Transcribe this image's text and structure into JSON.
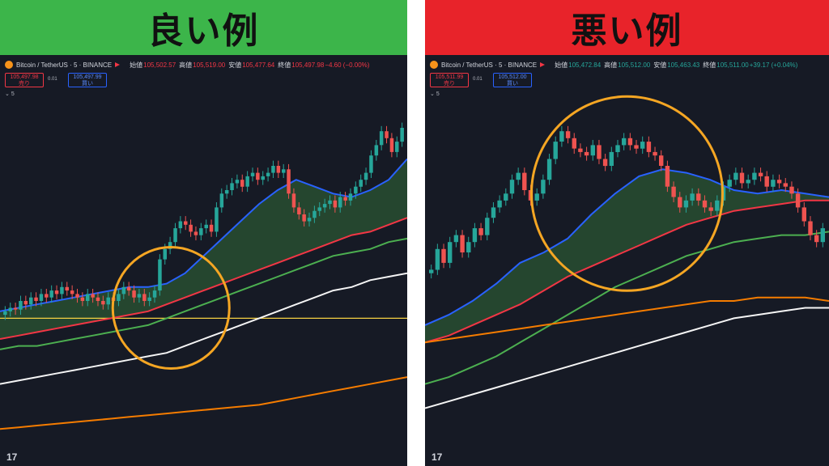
{
  "panels": [
    {
      "id": "left",
      "banner": {
        "label": "良い例",
        "color": "#3cb54a"
      },
      "legend": {
        "symbol": "Bitcoin / TetherUS · 5 · BINANCE",
        "open_label": "始値",
        "open": "105,502.57",
        "high_label": "高値",
        "high": "105,519.00",
        "low_label": "安値",
        "low": "105,477.64",
        "close_label": "終値",
        "close": "105,497.98",
        "change": "−4.60 (−0.00%)",
        "change_dir": "down"
      },
      "sell": {
        "price": "105,497.98",
        "label": "売り"
      },
      "spread": "0.01",
      "buy": {
        "price": "105,497.99",
        "label": "買い"
      },
      "interval": "5",
      "logo": "17",
      "chart_data": {
        "type": "line",
        "ylim": [
          0,
          1
        ],
        "candles": [
          0.4,
          0.41,
          0.405,
          0.43,
          0.42,
          0.44,
          0.43,
          0.45,
          0.44,
          0.46,
          0.45,
          0.47,
          0.46,
          0.45,
          0.44,
          0.43,
          0.45,
          0.44,
          0.43,
          0.42,
          0.44,
          0.43,
          0.45,
          0.47,
          0.46,
          0.44,
          0.45,
          0.43,
          0.44,
          0.46,
          0.55,
          0.58,
          0.6,
          0.64,
          0.66,
          0.65,
          0.63,
          0.62,
          0.64,
          0.65,
          0.63,
          0.7,
          0.74,
          0.75,
          0.77,
          0.78,
          0.76,
          0.79,
          0.8,
          0.78,
          0.79,
          0.8,
          0.82,
          0.8,
          0.81,
          0.74,
          0.7,
          0.68,
          0.66,
          0.67,
          0.69,
          0.7,
          0.71,
          0.72,
          0.7,
          0.73,
          0.72,
          0.74,
          0.76,
          0.78,
          0.8,
          0.85,
          0.88,
          0.92,
          0.9,
          0.86,
          0.89,
          0.93
        ],
        "series": [
          {
            "color": "#2962ff",
            "values": [
              0.4,
              0.41,
              0.42,
              0.43,
              0.44,
              0.45,
              0.46,
              0.47,
              0.47,
              0.48,
              0.51,
              0.56,
              0.61,
              0.66,
              0.71,
              0.75,
              0.78,
              0.76,
              0.74,
              0.73,
              0.75,
              0.78,
              0.84
            ]
          },
          {
            "color": "#f23645",
            "values": [
              0.32,
              0.33,
              0.34,
              0.35,
              0.36,
              0.37,
              0.38,
              0.39,
              0.4,
              0.42,
              0.44,
              0.46,
              0.48,
              0.5,
              0.52,
              0.54,
              0.56,
              0.58,
              0.6,
              0.62,
              0.63,
              0.65,
              0.67
            ]
          },
          {
            "color": "#4caf50",
            "values": [
              0.29,
              0.3,
              0.3,
              0.31,
              0.32,
              0.33,
              0.34,
              0.35,
              0.36,
              0.38,
              0.4,
              0.42,
              0.44,
              0.46,
              0.48,
              0.5,
              0.52,
              0.54,
              0.56,
              0.57,
              0.58,
              0.6,
              0.61
            ]
          },
          {
            "color": "#f5f5f5",
            "values": [
              0.19,
              0.2,
              0.21,
              0.22,
              0.23,
              0.24,
              0.25,
              0.26,
              0.27,
              0.28,
              0.3,
              0.32,
              0.34,
              0.36,
              0.38,
              0.4,
              0.42,
              0.44,
              0.46,
              0.47,
              0.49,
              0.5,
              0.51
            ]
          },
          {
            "color": "#f57c00",
            "values": [
              0.06,
              0.065,
              0.07,
              0.075,
              0.08,
              0.085,
              0.09,
              0.095,
              0.1,
              0.105,
              0.11,
              0.115,
              0.12,
              0.125,
              0.13,
              0.14,
              0.15,
              0.16,
              0.17,
              0.18,
              0.19,
              0.2,
              0.21
            ]
          }
        ],
        "hline": {
          "y": 0.38,
          "color": "#f5d142"
        },
        "highlight": {
          "x": 0.42,
          "y": 0.41,
          "color": "#f5a623"
        }
      }
    },
    {
      "id": "right",
      "banner": {
        "label": "悪い例",
        "color": "#e8232a"
      },
      "legend": {
        "symbol": "Bitcoin / TetherUS · 5 · BINANCE",
        "open_label": "始値",
        "open": "105,472.84",
        "high_label": "高値",
        "high": "105,512.00",
        "low_label": "安値",
        "low": "105,463.43",
        "close_label": "終値",
        "close": "105,511.00",
        "change": "+39.17 (+0.04%)",
        "change_dir": "up"
      },
      "sell": {
        "price": "105,511.99",
        "label": "売り"
      },
      "spread": "0.01",
      "buy": {
        "price": "105,512.00",
        "label": "買い"
      },
      "interval": "5",
      "logo": "17",
      "chart_data": {
        "type": "line",
        "ylim": [
          0,
          1
        ],
        "candles": [
          0.52,
          0.58,
          0.54,
          0.6,
          0.62,
          0.57,
          0.6,
          0.64,
          0.62,
          0.67,
          0.7,
          0.72,
          0.74,
          0.78,
          0.8,
          0.75,
          0.72,
          0.74,
          0.78,
          0.84,
          0.89,
          0.92,
          0.9,
          0.87,
          0.86,
          0.85,
          0.88,
          0.84,
          0.82,
          0.86,
          0.88,
          0.9,
          0.88,
          0.87,
          0.89,
          0.86,
          0.85,
          0.82,
          0.76,
          0.73,
          0.7,
          0.72,
          0.74,
          0.72,
          0.7,
          0.69,
          0.72,
          0.76,
          0.78,
          0.8,
          0.77,
          0.78,
          0.8,
          0.79,
          0.76,
          0.78,
          0.77,
          0.76,
          0.74,
          0.7,
          0.66,
          0.62,
          0.6,
          0.64
        ],
        "series": [
          {
            "color": "#2962ff",
            "values": [
              0.36,
              0.39,
              0.43,
              0.48,
              0.54,
              0.57,
              0.61,
              0.68,
              0.74,
              0.79,
              0.81,
              0.8,
              0.78,
              0.75,
              0.74,
              0.75,
              0.74,
              0.73
            ]
          },
          {
            "color": "#f23645",
            "values": [
              0.31,
              0.33,
              0.36,
              0.39,
              0.42,
              0.46,
              0.5,
              0.53,
              0.56,
              0.59,
              0.62,
              0.65,
              0.67,
              0.69,
              0.7,
              0.71,
              0.72,
              0.72
            ]
          },
          {
            "color": "#4caf50",
            "values": [
              0.19,
              0.21,
              0.24,
              0.27,
              0.31,
              0.35,
              0.39,
              0.43,
              0.47,
              0.5,
              0.53,
              0.56,
              0.58,
              0.6,
              0.61,
              0.62,
              0.62,
              0.63
            ]
          },
          {
            "color": "#f57c00",
            "values": [
              0.31,
              0.32,
              0.33,
              0.34,
              0.35,
              0.36,
              0.37,
              0.38,
              0.39,
              0.4,
              0.41,
              0.42,
              0.43,
              0.43,
              0.44,
              0.44,
              0.44,
              0.43
            ]
          },
          {
            "color": "#f5f5f5",
            "values": [
              0.12,
              0.14,
              0.16,
              0.18,
              0.2,
              0.22,
              0.24,
              0.26,
              0.28,
              0.3,
              0.32,
              0.34,
              0.36,
              0.38,
              0.39,
              0.4,
              0.41,
              0.41
            ]
          }
        ],
        "highlight": {
          "x": 0.5,
          "y": 0.74,
          "color": "#f5a623"
        }
      }
    }
  ]
}
